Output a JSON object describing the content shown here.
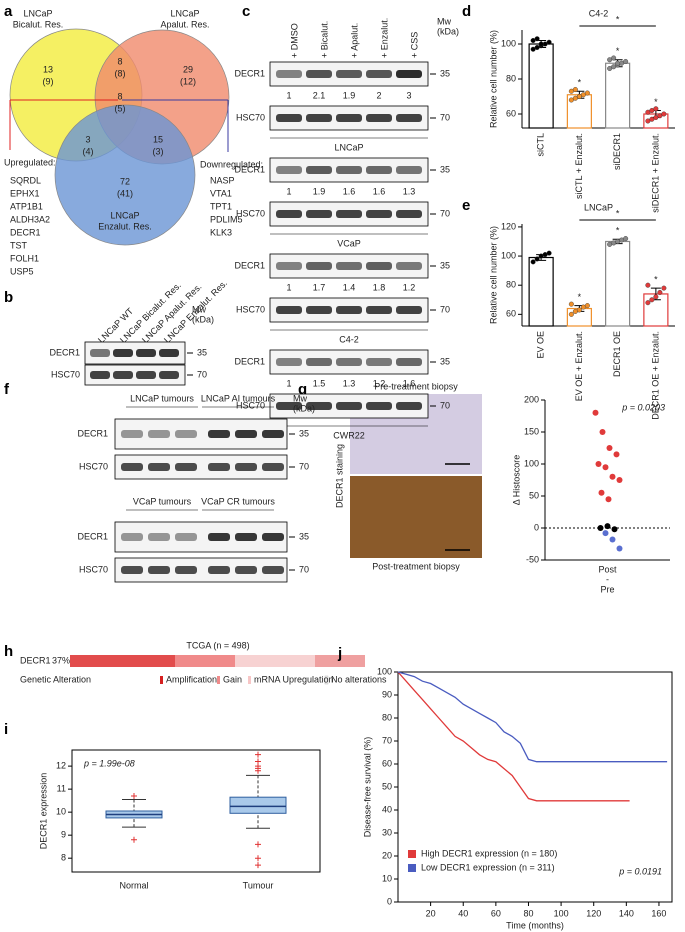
{
  "panel_labels": [
    "a",
    "b",
    "c",
    "d",
    "e",
    "f",
    "g",
    "h",
    "i",
    "j"
  ],
  "venn": {
    "sets": [
      {
        "name": [
          "LNCaP",
          "Bicalut. Res."
        ],
        "color": "#f2ec3c"
      },
      {
        "name": [
          "LNCaP",
          "Apalut. Res."
        ],
        "color": "#f08a6c"
      },
      {
        "name": [
          "LNCaP",
          "Enzalut. Res."
        ],
        "color": "#6a95d4"
      }
    ],
    "regions": [
      {
        "count": "13",
        "sub": "(9)"
      },
      {
        "count": "8",
        "sub": "(8)"
      },
      {
        "count": "29",
        "sub": "(12)"
      },
      {
        "count": "8",
        "sub": "(5)"
      },
      {
        "count": "3",
        "sub": "(4)"
      },
      {
        "count": "15",
        "sub": "(3)"
      },
      {
        "count": "72",
        "sub": "(41)"
      }
    ],
    "upregulated": {
      "title": "Upregulated:",
      "genes": [
        "SQRDL",
        "EPHX1",
        "ATP1B1",
        "ALDH3A2",
        "DECR1",
        "TST",
        "FOLH1",
        "USP5"
      ]
    },
    "downregulated": {
      "title": "Downregulated:",
      "genes": [
        "NASP",
        "VTA1",
        "TPT1",
        "PDLIM5",
        "KLK3"
      ]
    }
  },
  "blot_b": {
    "lanes": [
      "LNCaP WT",
      "LNCaP Bicalut. Res.",
      "LNCaP Apalut. Res.",
      "LNCaP Enzalut. Res."
    ],
    "mw": [
      "Mw",
      "(kDa)"
    ],
    "proteins": [
      "DECR1",
      "HSC70"
    ],
    "markers": [
      "35",
      "70"
    ]
  },
  "blot_c": {
    "lanes": [
      "+ DMSO",
      "+ Bicalut.",
      "+ Apalut.",
      "+ Enzalut.",
      "+ CSS"
    ],
    "mw": [
      "Mw",
      "(kDa)"
    ],
    "proteins": [
      "DECR1",
      "HSC70"
    ],
    "markers": [
      "35",
      "70"
    ],
    "blocks": [
      {
        "cell_line": "LNCaP",
        "values": [
          1,
          2.1,
          1.9,
          2,
          3
        ]
      },
      {
        "cell_line": "VCaP",
        "values": [
          1,
          1.9,
          1.6,
          1.6,
          1.3
        ]
      },
      {
        "cell_line": "C4-2",
        "values": [
          1,
          1.7,
          1.4,
          1.8,
          1.2
        ]
      },
      {
        "cell_line": "CWR22",
        "values": [
          1,
          1.5,
          1.3,
          1.2,
          1.6
        ]
      }
    ]
  },
  "blot_f": {
    "mw": [
      "Mw",
      "(kDa)"
    ],
    "proteins": [
      "DECR1",
      "HSC70"
    ],
    "markers": [
      "35",
      "70"
    ],
    "blocks": [
      {
        "groups": [
          "LNCaP tumours",
          "LNCaP AI tumours"
        ]
      },
      {
        "groups": [
          "VCaP tumours",
          "VCaP CR tumours"
        ]
      }
    ]
  },
  "ihc_g": {
    "pre": "Pre-treatment biopsy",
    "post": "Post-treatment biopsy",
    "stain": "DECR1 staining"
  },
  "oncoprint_h": {
    "title": "TCGA (n = 498)",
    "gene": "DECR1",
    "percent": "37%",
    "legend_title": "Genetic Alteration",
    "legend": [
      "Amplification",
      "Gain",
      "mRNA Upregulation",
      "No alterations"
    ]
  },
  "chart_data": [
    {
      "type": "bar",
      "title": "C4-2",
      "ylabel": "Relative cell number (%)",
      "categories": [
        "siCTL",
        "siCTL + Enzalut.",
        "siDECR1",
        "siDECR1 + Enzalut."
      ],
      "values": [
        100,
        71,
        89,
        60
      ],
      "errors": [
        2,
        2,
        2,
        2
      ],
      "points": [
        [
          97,
          98,
          99,
          100,
          101,
          102,
          103,
          100
        ],
        [
          68,
          69,
          70,
          71,
          72,
          73,
          74,
          70
        ],
        [
          86,
          87,
          88,
          89,
          90,
          91,
          92,
          89
        ],
        [
          56,
          57,
          58,
          59,
          60,
          61,
          62,
          63
        ]
      ],
      "colors": [
        "#000000",
        "#f0902a",
        "#888888",
        "#e03a3a"
      ],
      "stars": [
        null,
        "*",
        "*",
        "*"
      ],
      "bracket_label": "*",
      "ylim": [
        52,
        108
      ],
      "yticks": [
        60,
        80,
        100
      ]
    },
    {
      "type": "bar",
      "title": "LNCaP",
      "ylabel": "Relative cell number (%)",
      "categories": [
        "EV OE",
        "EV OE + Enzalut.",
        "DECR1 OE",
        "DECR1 OE + Enzalut."
      ],
      "values": [
        99,
        64,
        110,
        74
      ],
      "errors": [
        2,
        2,
        1.5,
        4
      ],
      "points": [
        [
          96,
          98,
          100,
          101,
          102
        ],
        [
          60,
          62,
          63,
          65,
          66,
          67
        ],
        [
          108,
          109,
          110,
          111,
          112
        ],
        [
          68,
          70,
          72,
          75,
          78,
          80
        ]
      ],
      "colors": [
        "#000000",
        "#f0902a",
        "#888888",
        "#e03a3a"
      ],
      "stars": [
        null,
        "*",
        "*",
        "*"
      ],
      "bracket_label": "*",
      "ylim": [
        52,
        122
      ],
      "yticks": [
        60,
        80,
        100,
        120
      ]
    },
    {
      "type": "strip",
      "ylabel": "Δ Histoscore",
      "category": [
        "Post",
        "-",
        "Pre"
      ],
      "annotation": "p = 0.0203",
      "series": [
        {
          "color": "#e03a3a",
          "values": [
            180,
            150,
            125,
            115,
            100,
            95,
            80,
            75,
            55,
            45
          ]
        },
        {
          "color": "#000000",
          "values": [
            0,
            3,
            -2
          ]
        },
        {
          "color": "#5a6fd0",
          "values": [
            -8,
            -18,
            -32
          ]
        }
      ],
      "ylim": [
        -50,
        200
      ],
      "yticks": [
        -50,
        0,
        50,
        100,
        150,
        200
      ]
    },
    {
      "type": "box",
      "ylabel": "DECR1 expression",
      "annotation": "p = 1.99e-08",
      "categories": [
        "Normal",
        "Tumour"
      ],
      "boxes": [
        {
          "low": 9.35,
          "q1": 9.75,
          "median": 9.9,
          "q3": 10.05,
          "high": 10.55,
          "outliers": [
            8.8,
            10.7
          ]
        },
        {
          "low": 9.3,
          "q1": 9.95,
          "median": 10.25,
          "q3": 10.65,
          "high": 11.6,
          "outliers": [
            7.7,
            8.0,
            8.6,
            11.8,
            11.9,
            12.0,
            12.2,
            12.5
          ]
        }
      ],
      "ylim": [
        7.4,
        12.7
      ],
      "yticks": [
        8,
        9,
        10,
        11,
        12
      ]
    },
    {
      "type": "line",
      "ylabel": "Disease-free survival (%)",
      "xlabel": "Time (months)",
      "annotation": "p = 0.0191",
      "legend": "lower left",
      "series": [
        {
          "name": "High DECR1 expression (n = 180)",
          "color": "#e03a3a",
          "x": [
            0,
            5,
            10,
            15,
            20,
            25,
            30,
            35,
            40,
            45,
            50,
            55,
            60,
            65,
            70,
            75,
            80,
            85,
            90,
            100,
            110,
            120,
            130,
            142
          ],
          "values": [
            100,
            96,
            92,
            88,
            84,
            80,
            76,
            72,
            70,
            67,
            64,
            62,
            61,
            58,
            55,
            50,
            45,
            44,
            44,
            44,
            44,
            44,
            44,
            44
          ]
        },
        {
          "name": "Low DECR1 expression (n = 311)",
          "color": "#4a5cc0",
          "x": [
            0,
            5,
            10,
            15,
            20,
            25,
            30,
            35,
            40,
            45,
            50,
            55,
            60,
            65,
            70,
            75,
            80,
            85,
            100,
            120,
            140,
            165
          ],
          "values": [
            100,
            99,
            98,
            96,
            95,
            93,
            91,
            89,
            86,
            84,
            82,
            80,
            78,
            74,
            72,
            69,
            62,
            61,
            61,
            61,
            61,
            61
          ]
        }
      ],
      "xlim": [
        0,
        168
      ],
      "xticks": [
        20,
        40,
        60,
        80,
        100,
        120,
        140,
        160
      ],
      "ylim": [
        0,
        100
      ],
      "yticks": [
        0,
        10,
        20,
        30,
        40,
        50,
        60,
        70,
        80,
        90,
        100
      ]
    }
  ]
}
